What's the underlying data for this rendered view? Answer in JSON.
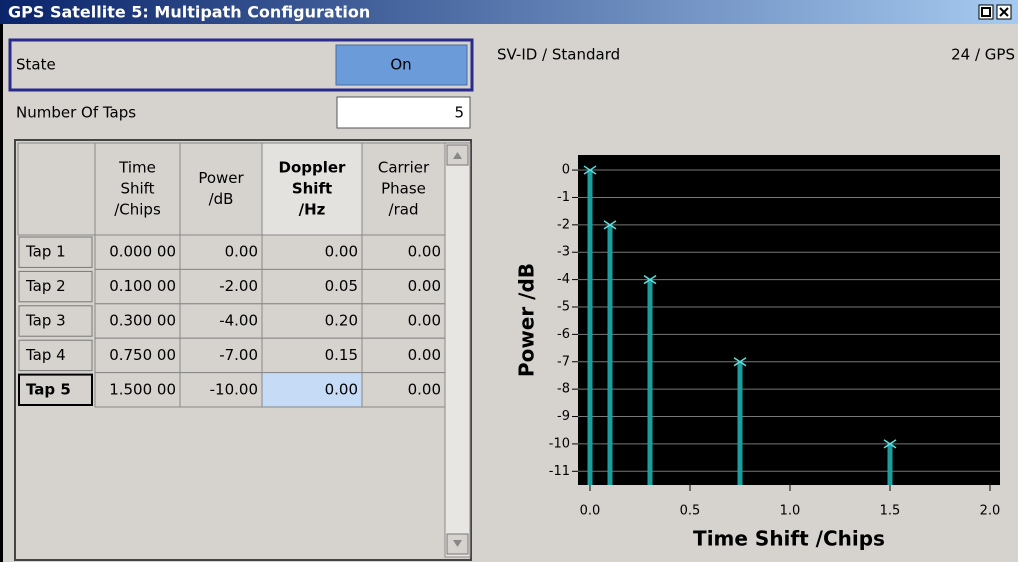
{
  "window": {
    "title": "GPS Satellite 5: Multipath Configuration"
  },
  "state": {
    "label": "State",
    "value": "On"
  },
  "taps": {
    "label": "Number Of Taps",
    "value": "5"
  },
  "sv": {
    "label": "SV-ID / Standard",
    "value": "24 / GPS"
  },
  "table": {
    "headers": [
      [
        "Time",
        "Shift",
        "/Chips"
      ],
      [
        "Power",
        "/dB"
      ],
      [
        "Doppler",
        "Shift",
        "/Hz"
      ],
      [
        "Carrier",
        "Phase",
        "/rad"
      ]
    ],
    "rows": [
      [
        "Tap 1",
        "0.000 00",
        "0.00",
        "0.00",
        "0.00"
      ],
      [
        "Tap 2",
        "0.100 00",
        "-2.00",
        "0.05",
        "0.00"
      ],
      [
        "Tap 3",
        "0.300 00",
        "-4.00",
        "0.20",
        "0.00"
      ],
      [
        "Tap 4",
        "0.750 00",
        "-7.00",
        "0.15",
        "0.00"
      ],
      [
        "Tap 5",
        "1.500 00",
        "-10.00",
        "0.00",
        "0.00"
      ]
    ]
  },
  "chart_data": {
    "type": "stem",
    "xlabel": "Time Shift /Chips",
    "ylabel": "Power /dB",
    "x": [
      0,
      0.1,
      0.3,
      0.75,
      1.5
    ],
    "values": [
      0,
      -2,
      -4,
      -7,
      -10
    ],
    "color": "#1c9e9e",
    "xlim": [
      -0.06,
      2.05
    ],
    "ylim": [
      -11.5,
      0.55
    ],
    "xticks": [
      {
        "value": 0,
        "label": "0.0"
      },
      0.5,
      {
        "value": 1,
        "label": "1.0"
      },
      1.5,
      {
        "value": 2,
        "label": "2.0"
      }
    ],
    "yticks": [
      0,
      -1,
      -2,
      -3,
      -4,
      -5,
      -6,
      -7,
      -8,
      -9,
      -10,
      -11
    ],
    "grid": true
  }
}
